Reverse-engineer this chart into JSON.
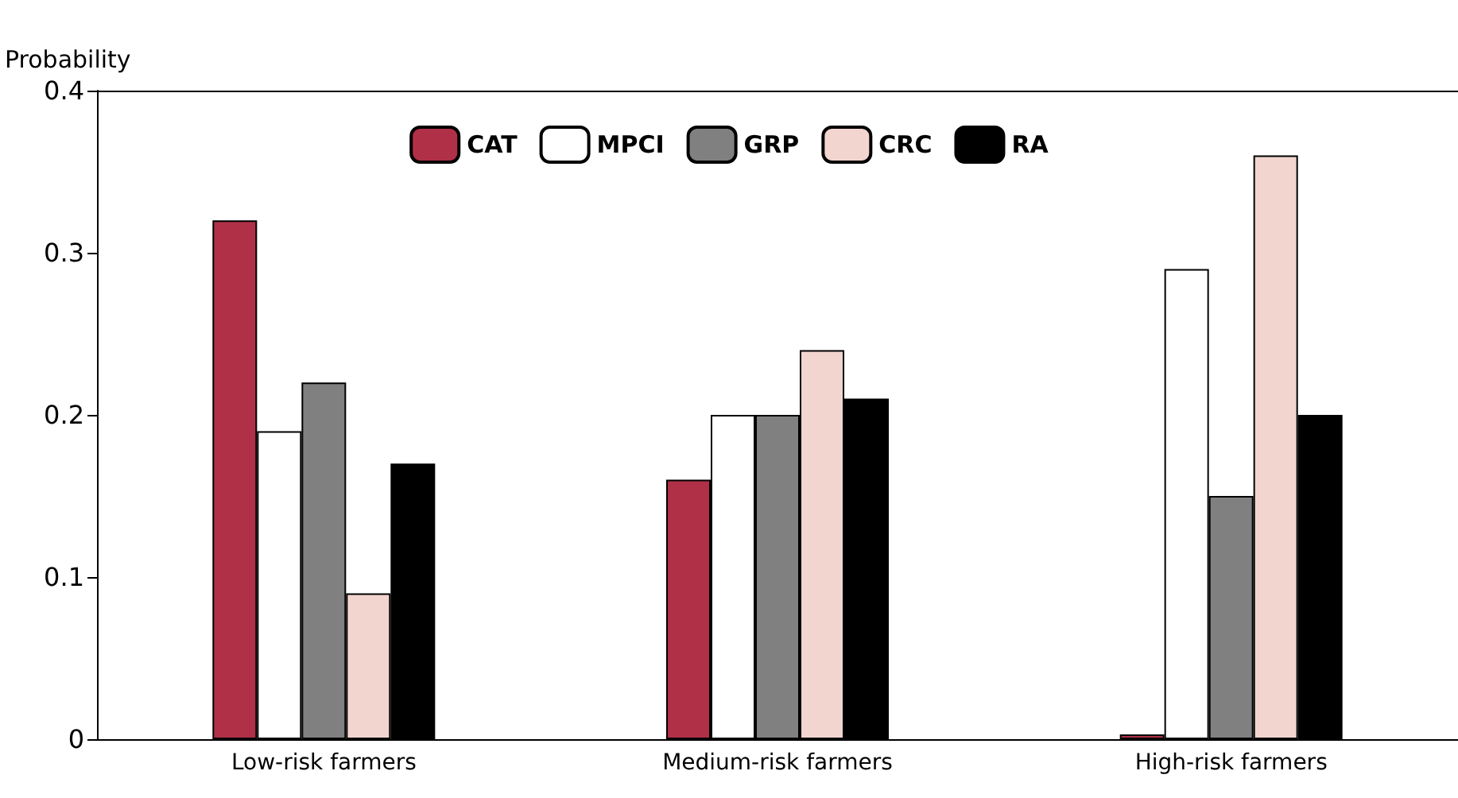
{
  "chart_data": {
    "type": "bar",
    "ylabel": "Probability",
    "categories": [
      "Low-risk farmers",
      "Medium-risk farmers",
      "High-risk farmers"
    ],
    "series": [
      {
        "name": "CAT",
        "color": "#b03048",
        "values": [
          0.32,
          0.16,
          0.003
        ]
      },
      {
        "name": "MPCI",
        "color": "#ffffff",
        "values": [
          0.19,
          0.2,
          0.29
        ]
      },
      {
        "name": "GRP",
        "color": "#808080",
        "values": [
          0.22,
          0.2,
          0.15
        ]
      },
      {
        "name": "CRC",
        "color": "#f2d5cf",
        "values": [
          0.09,
          0.24,
          0.36
        ]
      },
      {
        "name": "RA",
        "color": "#000000",
        "values": [
          0.17,
          0.21,
          0.2
        ]
      }
    ],
    "ylim": [
      0,
      0.4
    ],
    "yticks": [
      0,
      0.1,
      0.2,
      0.3,
      0.4
    ],
    "grid": false,
    "legend": "top"
  }
}
